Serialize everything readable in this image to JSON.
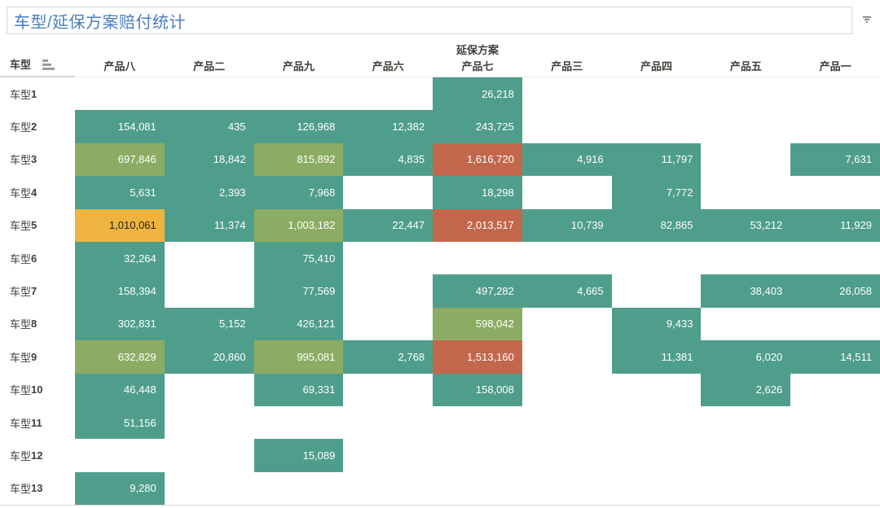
{
  "title": {
    "text": "车型/延保方案赔付统计"
  },
  "menu": {
    "caret_icon": "dropdown-caret"
  },
  "header": {
    "row_dimension": "车型",
    "column_dimension": "延保方案",
    "sort_icon": "sort-ascending-bars"
  },
  "colors": {
    "teal": "#4f9e8b",
    "olive": "#8cac63",
    "amber": "#eeb43f",
    "red": "#c3674c",
    "text_on_dark": "#ffffff",
    "text_on_amber": "#1e1e1e",
    "title_blue": "#4a7ebf",
    "label_gray": "#423e3a"
  },
  "chart_data": {
    "type": "heatmap",
    "title": "车型/延保方案赔付统计",
    "x_dimension": "延保方案",
    "y_dimension": "车型",
    "legend": "none",
    "columns": [
      "产品八",
      "产品二",
      "产品九",
      "产品六",
      "产品七",
      "产品三",
      "产品四",
      "产品五",
      "产品一"
    ],
    "rows": [
      "车型1",
      "车型2",
      "车型3",
      "车型4",
      "车型5",
      "车型6",
      "车型7",
      "车型8",
      "车型9",
      "车型10",
      "车型11",
      "车型12",
      "车型13"
    ],
    "cells": [
      [
        null,
        null,
        null,
        null,
        {
          "n": 26218,
          "v": "26,218",
          "c": "teal"
        },
        null,
        null,
        null,
        null
      ],
      [
        {
          "n": 154081,
          "v": "154,081",
          "c": "teal"
        },
        {
          "n": 435,
          "v": "435",
          "c": "teal"
        },
        {
          "n": 126968,
          "v": "126,968",
          "c": "teal"
        },
        {
          "n": 12382,
          "v": "12,382",
          "c": "teal"
        },
        {
          "n": 243725,
          "v": "243,725",
          "c": "teal"
        },
        null,
        null,
        null,
        null
      ],
      [
        {
          "n": 697846,
          "v": "697,846",
          "c": "olive"
        },
        {
          "n": 18842,
          "v": "18,842",
          "c": "teal"
        },
        {
          "n": 815892,
          "v": "815,892",
          "c": "olive"
        },
        {
          "n": 4835,
          "v": "4,835",
          "c": "teal"
        },
        {
          "n": 1616720,
          "v": "1,616,720",
          "c": "red"
        },
        {
          "n": 4916,
          "v": "4,916",
          "c": "teal"
        },
        {
          "n": 11797,
          "v": "11,797",
          "c": "teal"
        },
        null,
        {
          "n": 7631,
          "v": "7,631",
          "c": "teal"
        }
      ],
      [
        {
          "n": 5631,
          "v": "5,631",
          "c": "teal"
        },
        {
          "n": 2393,
          "v": "2,393",
          "c": "teal"
        },
        {
          "n": 7968,
          "v": "7,968",
          "c": "teal"
        },
        null,
        {
          "n": 18298,
          "v": "18,298",
          "c": "teal"
        },
        null,
        {
          "n": 7772,
          "v": "7,772",
          "c": "teal"
        },
        null,
        null
      ],
      [
        {
          "n": 1010061,
          "v": "1,010,061",
          "c": "amber"
        },
        {
          "n": 11374,
          "v": "11,374",
          "c": "teal"
        },
        {
          "n": 1003182,
          "v": "1,003,182",
          "c": "olive"
        },
        {
          "n": 22447,
          "v": "22,447",
          "c": "teal"
        },
        {
          "n": 2013517,
          "v": "2,013,517",
          "c": "red"
        },
        {
          "n": 10739,
          "v": "10,739",
          "c": "teal"
        },
        {
          "n": 82865,
          "v": "82,865",
          "c": "teal"
        },
        {
          "n": 53212,
          "v": "53,212",
          "c": "teal"
        },
        {
          "n": 11929,
          "v": "11,929",
          "c": "teal"
        }
      ],
      [
        {
          "n": 32264,
          "v": "32,264",
          "c": "teal"
        },
        null,
        {
          "n": 75410,
          "v": "75,410",
          "c": "teal"
        },
        null,
        null,
        null,
        null,
        null,
        null
      ],
      [
        {
          "n": 158394,
          "v": "158,394",
          "c": "teal"
        },
        null,
        {
          "n": 77569,
          "v": "77,569",
          "c": "teal"
        },
        null,
        {
          "n": 497282,
          "v": "497,282",
          "c": "teal"
        },
        {
          "n": 4665,
          "v": "4,665",
          "c": "teal"
        },
        null,
        {
          "n": 38403,
          "v": "38,403",
          "c": "teal"
        },
        {
          "n": 26058,
          "v": "26,058",
          "c": "teal"
        }
      ],
      [
        {
          "n": 302831,
          "v": "302,831",
          "c": "teal"
        },
        {
          "n": 5152,
          "v": "5,152",
          "c": "teal"
        },
        {
          "n": 426121,
          "v": "426,121",
          "c": "teal"
        },
        null,
        {
          "n": 598042,
          "v": "598,042",
          "c": "olive"
        },
        null,
        {
          "n": 9433,
          "v": "9,433",
          "c": "teal"
        },
        null,
        null
      ],
      [
        {
          "n": 632829,
          "v": "632,829",
          "c": "olive"
        },
        {
          "n": 20860,
          "v": "20,860",
          "c": "teal"
        },
        {
          "n": 995081,
          "v": "995,081",
          "c": "olive"
        },
        {
          "n": 2768,
          "v": "2,768",
          "c": "teal"
        },
        {
          "n": 1513160,
          "v": "1,513,160",
          "c": "red"
        },
        null,
        {
          "n": 11381,
          "v": "11,381",
          "c": "teal"
        },
        {
          "n": 6020,
          "v": "6,020",
          "c": "teal"
        },
        {
          "n": 14511,
          "v": "14,511",
          "c": "teal"
        }
      ],
      [
        {
          "n": 46448,
          "v": "46,448",
          "c": "teal"
        },
        null,
        {
          "n": 69331,
          "v": "69,331",
          "c": "teal"
        },
        null,
        {
          "n": 158008,
          "v": "158,008",
          "c": "teal"
        },
        null,
        null,
        {
          "n": 2626,
          "v": "2,626",
          "c": "teal"
        },
        null
      ],
      [
        {
          "n": 51156,
          "v": "51,156",
          "c": "teal"
        },
        null,
        null,
        null,
        null,
        null,
        null,
        null,
        null
      ],
      [
        null,
        null,
        {
          "n": 15089,
          "v": "15,089",
          "c": "teal"
        },
        null,
        null,
        null,
        null,
        null,
        null
      ],
      [
        {
          "n": 9280,
          "v": "9,280",
          "c": "teal"
        },
        null,
        null,
        null,
        null,
        null,
        null,
        null,
        null
      ]
    ]
  }
}
